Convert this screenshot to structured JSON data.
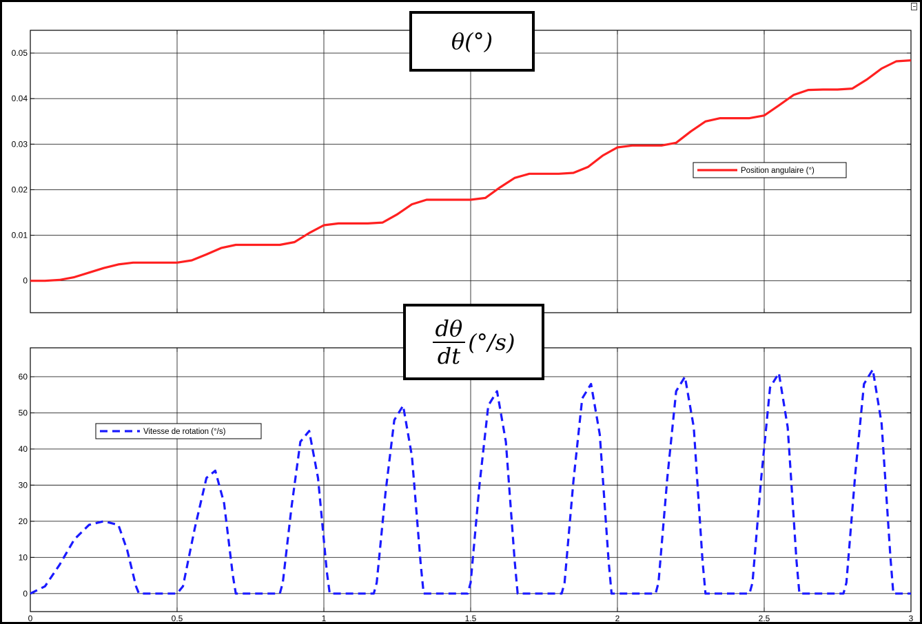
{
  "chart_data": [
    {
      "type": "line",
      "title": "θ(°)",
      "xlim": [
        0,
        3
      ],
      "ylim": [
        -0.007,
        0.055
      ],
      "xticks": [
        0,
        0.5,
        1,
        1.5,
        2,
        2.5,
        3
      ],
      "yticks": [
        0,
        0.01,
        0.02,
        0.03,
        0.04,
        0.05
      ],
      "yticklabels": [
        "0",
        "0.01",
        "0.02",
        "0.03",
        "0.04",
        "0.05"
      ],
      "grid": true,
      "legend_position": "upper-right",
      "series": [
        {
          "name": "Position angulaire (°)",
          "color": "#ff2020",
          "style": "solid",
          "x": [
            0,
            0.05,
            0.1,
            0.15,
            0.2,
            0.25,
            0.3,
            0.35,
            0.4,
            0.45,
            0.5,
            0.55,
            0.6,
            0.65,
            0.7,
            0.75,
            0.8,
            0.85,
            0.9,
            0.95,
            1.0,
            1.05,
            1.1,
            1.15,
            1.2,
            1.25,
            1.3,
            1.35,
            1.4,
            1.45,
            1.5,
            1.55,
            1.6,
            1.65,
            1.7,
            1.75,
            1.8,
            1.85,
            1.9,
            1.95,
            2.0,
            2.05,
            2.1,
            2.15,
            2.2,
            2.25,
            2.3,
            2.35,
            2.4,
            2.45,
            2.5,
            2.55,
            2.6,
            2.65,
            2.7,
            2.75,
            2.8,
            2.85,
            2.9,
            2.95,
            3.0
          ],
          "values": [
            0,
            0,
            0.0002,
            0.0008,
            0.0018,
            0.0028,
            0.0036,
            0.004,
            0.004,
            0.004,
            0.004,
            0.0045,
            0.0058,
            0.0072,
            0.0079,
            0.0079,
            0.0079,
            0.0079,
            0.0085,
            0.0105,
            0.0122,
            0.0126,
            0.0126,
            0.0126,
            0.0128,
            0.0146,
            0.0168,
            0.0178,
            0.0178,
            0.0178,
            0.0178,
            0.0182,
            0.0205,
            0.0226,
            0.0235,
            0.0235,
            0.0235,
            0.0237,
            0.025,
            0.0275,
            0.0293,
            0.0297,
            0.0297,
            0.0297,
            0.0303,
            0.0328,
            0.035,
            0.0357,
            0.0357,
            0.0357,
            0.0363,
            0.0385,
            0.0408,
            0.0419,
            0.042,
            0.042,
            0.0422,
            0.0442,
            0.0466,
            0.0482,
            0.0484
          ]
        }
      ]
    },
    {
      "type": "line",
      "title": "dθ/dt (°/s)",
      "xlim": [
        0,
        3
      ],
      "ylim": [
        -5,
        68
      ],
      "xticks": [
        0,
        0.5,
        1,
        1.5,
        2,
        2.5,
        3
      ],
      "xticklabels": [
        "0",
        "0.5",
        "1",
        "1.5",
        "2",
        "2.5",
        "3"
      ],
      "yticks": [
        0,
        10,
        20,
        30,
        40,
        50,
        60
      ],
      "grid": true,
      "legend_position": "upper-left",
      "series": [
        {
          "name": "Vitesse de rotation (°/s)",
          "color": "#1a1aff",
          "style": "dashed",
          "x": [
            0,
            0.05,
            0.1,
            0.15,
            0.2,
            0.25,
            0.3,
            0.33,
            0.36,
            0.37,
            0.5,
            0.52,
            0.56,
            0.6,
            0.63,
            0.66,
            0.69,
            0.7,
            0.85,
            0.86,
            0.89,
            0.92,
            0.95,
            0.98,
            1.01,
            1.02,
            1.17,
            1.18,
            1.21,
            1.24,
            1.27,
            1.3,
            1.33,
            1.34,
            1.49,
            1.5,
            1.53,
            1.56,
            1.59,
            1.62,
            1.65,
            1.66,
            1.81,
            1.82,
            1.85,
            1.88,
            1.91,
            1.94,
            1.97,
            1.98,
            2.13,
            2.14,
            2.17,
            2.2,
            2.23,
            2.26,
            2.29,
            2.3,
            2.45,
            2.46,
            2.49,
            2.52,
            2.55,
            2.58,
            2.61,
            2.62,
            2.77,
            2.78,
            2.81,
            2.84,
            2.87,
            2.9,
            2.93,
            2.94,
            3.0
          ],
          "values": [
            0,
            2,
            8,
            15,
            19,
            20,
            19,
            12,
            2,
            0,
            0,
            2,
            18,
            32,
            34,
            25,
            5,
            0,
            0,
            3,
            24,
            42,
            45,
            32,
            6,
            0,
            0,
            3,
            28,
            48,
            52,
            38,
            8,
            0,
            0,
            3,
            30,
            52,
            56,
            42,
            9,
            0,
            0,
            3,
            31,
            54,
            58,
            44,
            9,
            0,
            0,
            3,
            32,
            56,
            60,
            46,
            9,
            0,
            0,
            3,
            32,
            57,
            61,
            46,
            9,
            0,
            0,
            3,
            33,
            58,
            62,
            47,
            10,
            0,
            0
          ]
        }
      ]
    }
  ]
}
